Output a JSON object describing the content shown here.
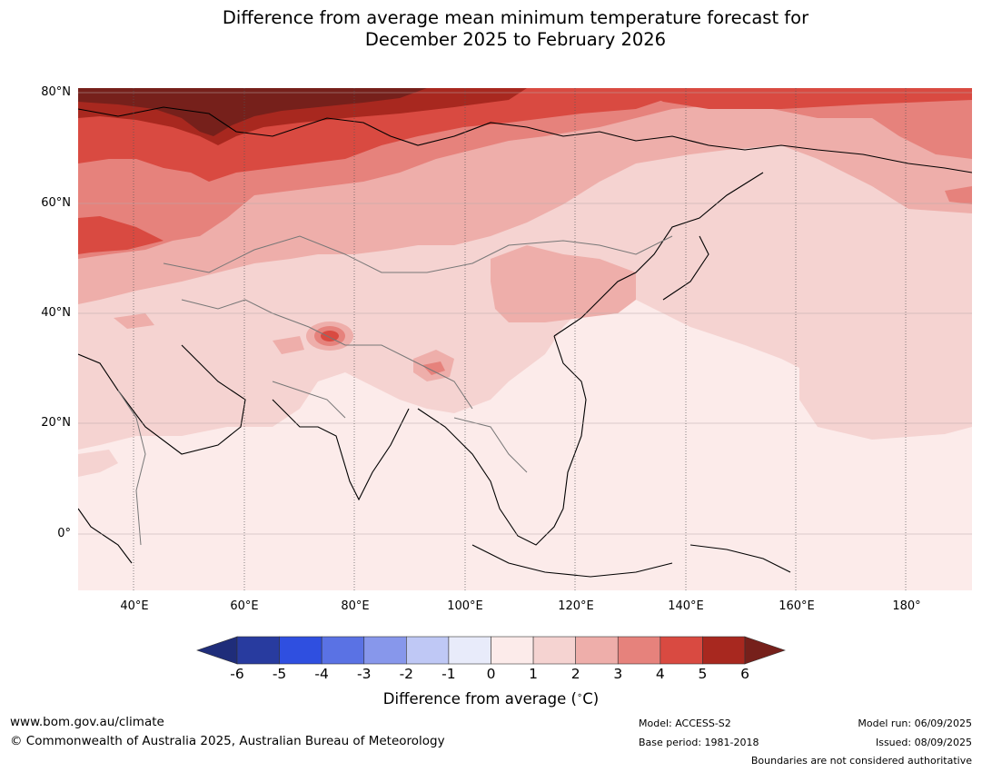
{
  "title": {
    "line1": "Difference from average mean minimum temperature forecast for",
    "line2": "December 2025 to February 2026"
  },
  "map": {
    "region": "Asia",
    "lat_labels": [
      "80°N",
      "60°N",
      "40°N",
      "20°N",
      "0°"
    ],
    "lon_labels": [
      "40°E",
      "60°E",
      "80°E",
      "100°E",
      "120°E",
      "140°E",
      "160°E",
      "180°"
    ],
    "lat_range": [
      -10,
      80
    ],
    "lon_range": [
      30,
      192
    ],
    "features": [
      {
        "name": "strong-warm-anomaly-kara-sea",
        "value": 5
      },
      {
        "name": "warm-anomaly-northern-siberia",
        "value": 4
      },
      {
        "name": "warm-anomaly-tibetan-hotspot",
        "value": 3
      },
      {
        "name": "mild-warm-anomaly-tropics",
        "value": 0.5
      }
    ]
  },
  "colorbar": {
    "ticks": [
      "-6",
      "-5",
      "-4",
      "-3",
      "-2",
      "-1",
      "0",
      "1",
      "2",
      "3",
      "4",
      "5",
      "6"
    ],
    "colors": [
      "#283b9f",
      "#2f4fe0",
      "#5a72e4",
      "#8797eb",
      "#bfc8f5",
      "#e8ebfa",
      "#fcebea",
      "#f5d3d1",
      "#eeaeaa",
      "#e6827c",
      "#d94a41",
      "#a8281f"
    ],
    "under_color": "#1f2d7a",
    "over_color": "#76201b",
    "label": "Difference from average (",
    "label_unit": "∘",
    "label_end": "C)"
  },
  "footer": {
    "url": "www.bom.gov.au/climate",
    "copyright": "© Commonwealth of Australia 2025, Australian Bureau of Meteorology",
    "model": "Model: ACCESS-S2",
    "base_period": "Base period: 1981-2018",
    "model_run": "Model run: 06/09/2025",
    "issued": "Issued: 08/09/2025",
    "disclaimer": "Boundaries are not considered authoritative"
  }
}
